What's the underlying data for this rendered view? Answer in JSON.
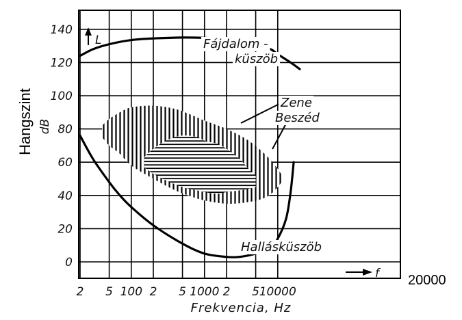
{
  "chart_data": {
    "type": "line",
    "xscale": "log",
    "xlim": [
      20,
      20000
    ],
    "ylim": [
      0,
      150
    ],
    "grid": true,
    "xlabel": "Frekvencia, Hz",
    "ylabel_outer": "Hangszint",
    "ylabel_inner": "dB",
    "y_axis_marker": "L",
    "x_axis_marker": "f",
    "x_ticks": [
      {
        "value": 20,
        "label": "2"
      },
      {
        "value": 50,
        "label": "5"
      },
      {
        "value": 100,
        "label": "100"
      },
      {
        "value": 200,
        "label": "2"
      },
      {
        "value": 500,
        "label": "5"
      },
      {
        "value": 1000,
        "label": "1000"
      },
      {
        "value": 2000,
        "label": "2"
      },
      {
        "value": 5000,
        "label": "5"
      },
      {
        "value": 10000,
        "label": "10000"
      }
    ],
    "x_extra_label": "20000",
    "y_ticks": [
      0,
      20,
      40,
      60,
      80,
      100,
      120,
      140
    ],
    "series": [
      {
        "name": "Fájdalom-küszöb",
        "x": [
          20,
          30,
          50,
          100,
          200,
          500,
          1000,
          2000,
          5000,
          8000,
          10000,
          15000,
          20000
        ],
        "y": [
          124,
          128,
          131,
          133.5,
          134.5,
          135,
          134.8,
          134,
          131,
          128,
          125,
          120,
          116
        ]
      },
      {
        "name": "Hallásküszöb",
        "x": [
          20,
          30,
          50,
          70,
          100,
          200,
          500,
          1000,
          2000,
          3000,
          5000,
          8000,
          10000,
          13000,
          15000,
          16500
        ],
        "y": [
          76,
          62,
          48,
          40,
          33,
          22,
          11,
          5,
          3,
          3,
          5,
          9,
          14,
          26,
          42,
          60
        ]
      }
    ],
    "regions": [
      {
        "name": "Zene",
        "upper": {
          "x": [
            40,
            50,
            70,
            100,
            200,
            400,
            700,
            1000,
            2000,
            4000,
            7000,
            10000,
            12000
          ],
          "y": [
            82,
            86,
            90,
            93,
            94,
            92,
            88,
            85,
            80,
            73,
            64,
            56,
            50
          ]
        },
        "lower": {
          "x": [
            40,
            50,
            70,
            100,
            200,
            400,
            700,
            1000,
            2000,
            4000,
            7000,
            10000,
            12000
          ],
          "y": [
            75,
            70,
            65,
            58,
            50,
            43,
            39,
            37,
            35,
            36,
            39,
            45,
            50
          ]
        }
      },
      {
        "name": "Beszéd",
        "upper": {
          "x": [
            150,
            200,
            300,
            500,
            800,
            1000,
            1500,
            2000,
            3000,
            4000,
            5000
          ],
          "y": [
            63,
            68,
            73,
            76,
            75,
            73,
            71,
            68,
            62,
            56,
            52
          ]
        },
        "lower": {
          "x": [
            150,
            200,
            300,
            500,
            800,
            1000,
            1500,
            2000,
            3000,
            4000,
            5000
          ],
          "y": [
            57,
            53,
            49,
            45,
            43,
            42,
            41,
            42,
            43,
            44,
            45
          ]
        }
      }
    ],
    "annotations": [
      {
        "text": "Fájdalom -",
        "x": 300,
        "y": 140
      },
      {
        "text": "küszöb",
        "x": 700,
        "y": 127
      },
      {
        "text": "Zene",
        "x": 1100,
        "y": 96
      },
      {
        "text": "Beszéd",
        "x": 1100,
        "y": 85
      },
      {
        "text": "Hallásküszöb",
        "x": 1000,
        "y": 9
      }
    ]
  }
}
